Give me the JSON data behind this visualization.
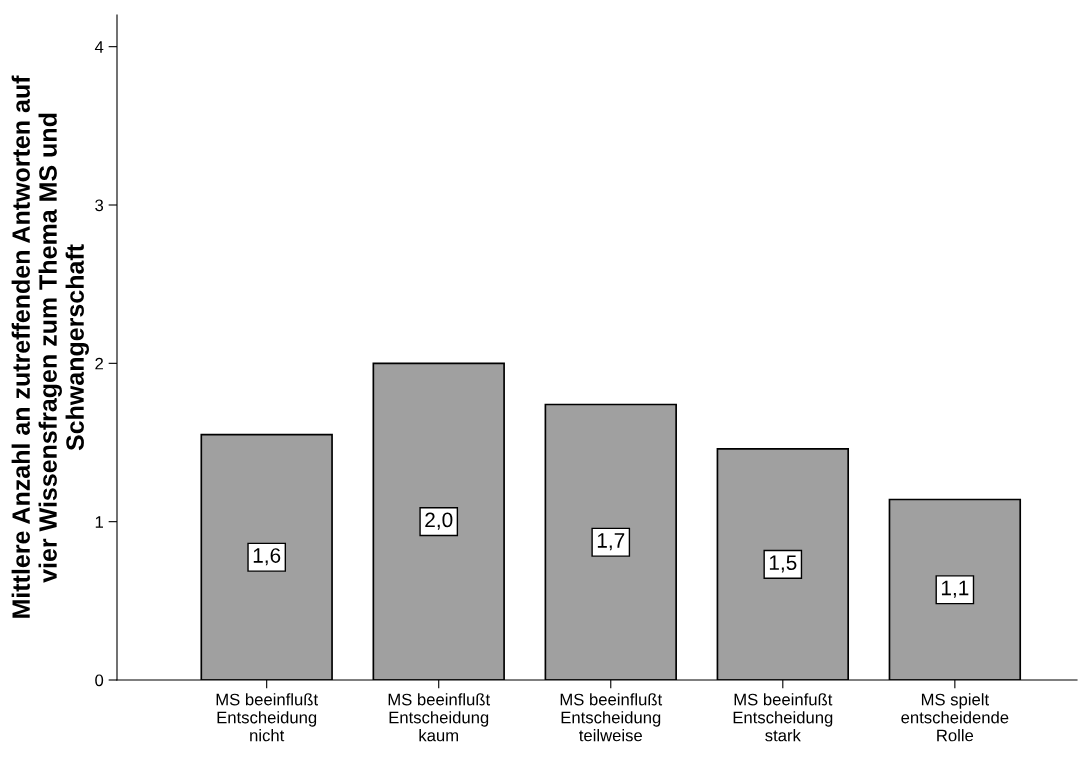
{
  "chart_data": {
    "type": "bar",
    "ylabel": "Mittlere Anzahl an zutreffenden Antworten auf\nvier Wissensfragen zum Thema MS und\nSchwangerschaft",
    "categories": [
      "MS beeinflußt\nEntscheidung\nnicht",
      "MS beeinflußt\nEntscheidung\nkaum",
      "MS beeinflußt\nEntscheidung\nteilweise",
      "MS beeinfußt\nEntscheidung\nstark",
      "MS spielt\nentscheidende\nRolle"
    ],
    "values": [
      1.55,
      2.0,
      1.74,
      1.46,
      1.14
    ],
    "value_labels": [
      "1,6",
      "2,0",
      "1,7",
      "1,5",
      "1,1"
    ],
    "color": "#a0a0a0",
    "ylim": [
      0,
      4.2
    ],
    "yticks": [
      0,
      1,
      2,
      3,
      4
    ],
    "grid": false
  }
}
